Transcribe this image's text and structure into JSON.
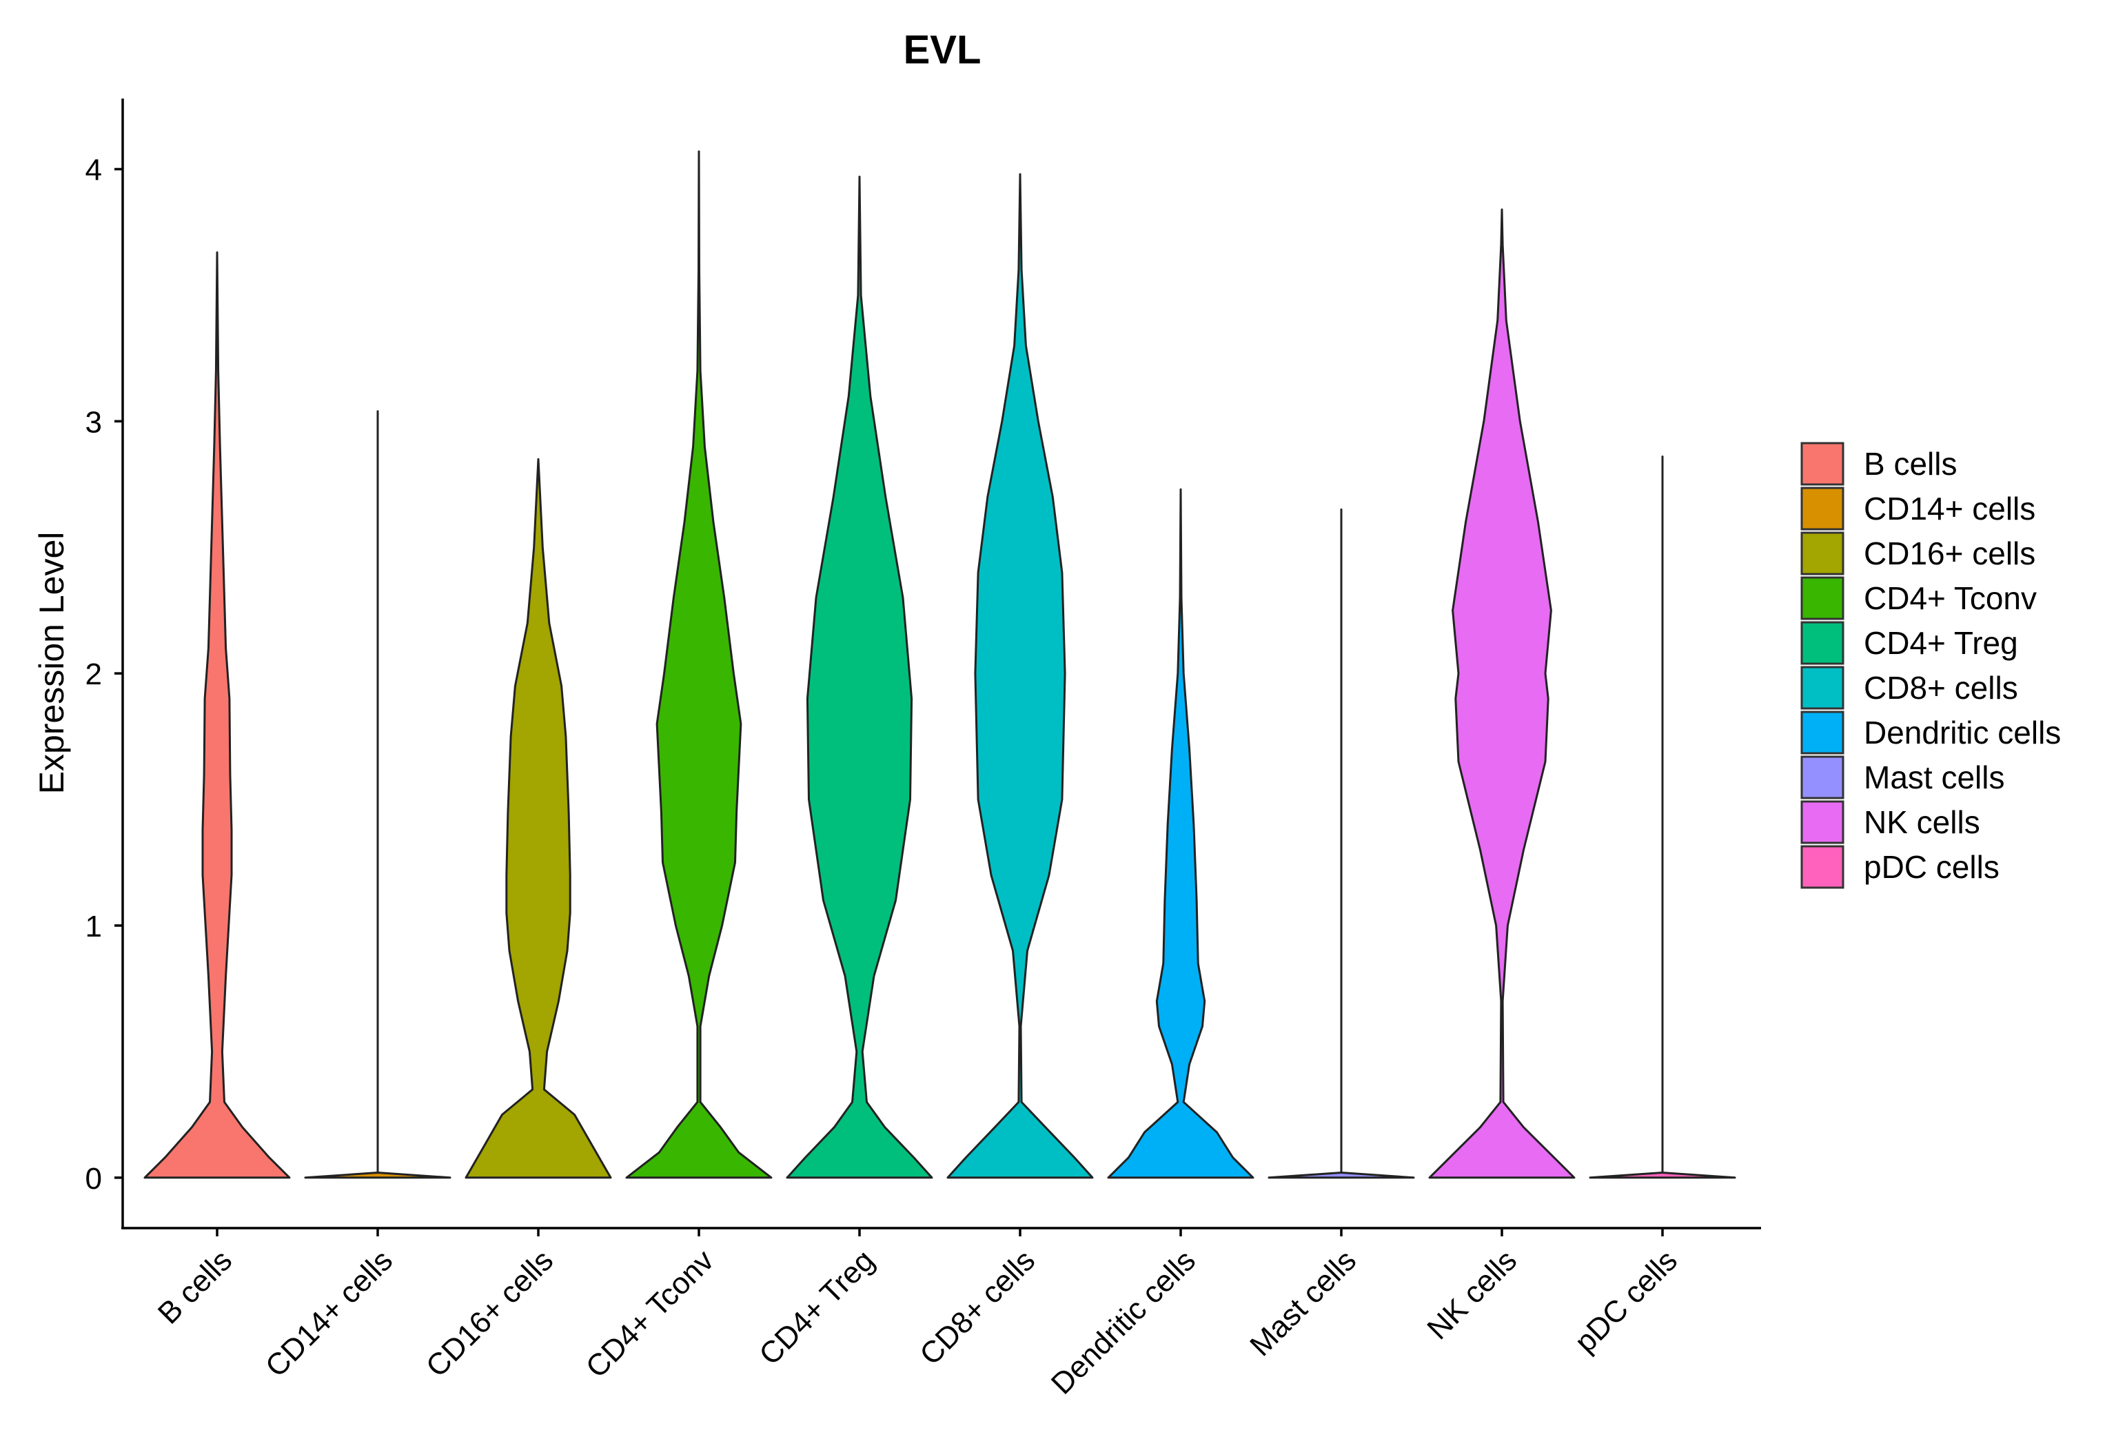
{
  "chart_data": {
    "type": "violin",
    "title": "EVL",
    "xlabel": "",
    "ylabel": "Expression Level",
    "ylim": [
      -0.2,
      4.28
    ],
    "yticks": [
      0,
      1,
      2,
      3,
      4
    ],
    "grid": false,
    "legend_position": "right",
    "categories": [
      "B cells",
      "CD14+ cells",
      "CD16+ cells",
      "CD4+ Tconv",
      "CD4+ Treg",
      "CD8+ cells",
      "Dendritic cells",
      "Mast cells",
      "NK cells",
      "pDC cells"
    ],
    "colors": [
      "#F8766D",
      "#D89000",
      "#A3A500",
      "#39B600",
      "#00BF7D",
      "#00BFC4",
      "#00B0F6",
      "#9590FF",
      "#E76BF3",
      "#FF62BC"
    ],
    "series": [
      {
        "name": "B cells",
        "max": 3.67,
        "density": [
          [
            0,
            1.0
          ],
          [
            0.08,
            0.72
          ],
          [
            0.2,
            0.35
          ],
          [
            0.3,
            0.1
          ],
          [
            0.5,
            0.07
          ],
          [
            0.8,
            0.12
          ],
          [
            1.2,
            0.2
          ],
          [
            1.38,
            0.2
          ],
          [
            1.6,
            0.18
          ],
          [
            1.9,
            0.17
          ],
          [
            2.1,
            0.12
          ],
          [
            2.5,
            0.08
          ],
          [
            2.9,
            0.04
          ],
          [
            3.2,
            0.015
          ],
          [
            3.67,
            0.0
          ]
        ]
      },
      {
        "name": "CD14+ cells",
        "max": 3.04,
        "density": [
          [
            0,
            1.0
          ],
          [
            0.02,
            0.0
          ],
          [
            3.04,
            0.0
          ]
        ]
      },
      {
        "name": "CD16+ cells",
        "max": 2.85,
        "density": [
          [
            0,
            1.0
          ],
          [
            0.1,
            0.8
          ],
          [
            0.25,
            0.5
          ],
          [
            0.35,
            0.08
          ],
          [
            0.5,
            0.12
          ],
          [
            0.7,
            0.28
          ],
          [
            0.9,
            0.4
          ],
          [
            1.05,
            0.44
          ],
          [
            1.2,
            0.44
          ],
          [
            1.45,
            0.42
          ],
          [
            1.75,
            0.38
          ],
          [
            1.95,
            0.32
          ],
          [
            2.2,
            0.15
          ],
          [
            2.5,
            0.06
          ],
          [
            2.85,
            0.0
          ]
        ]
      },
      {
        "name": "CD4+ Tconv",
        "max": 4.07,
        "density": [
          [
            0,
            1.0
          ],
          [
            0.1,
            0.55
          ],
          [
            0.2,
            0.3
          ],
          [
            0.3,
            0.02
          ],
          [
            0.6,
            0.02
          ],
          [
            0.8,
            0.14
          ],
          [
            1.0,
            0.32
          ],
          [
            1.25,
            0.5
          ],
          [
            1.45,
            0.52
          ],
          [
            1.8,
            0.58
          ],
          [
            2.0,
            0.48
          ],
          [
            2.3,
            0.35
          ],
          [
            2.6,
            0.2
          ],
          [
            2.9,
            0.08
          ],
          [
            3.2,
            0.02
          ],
          [
            3.6,
            0.005
          ],
          [
            4.07,
            0.0
          ]
        ]
      },
      {
        "name": "CD4+ Treg",
        "max": 3.97,
        "density": [
          [
            0,
            1.0
          ],
          [
            0.08,
            0.75
          ],
          [
            0.2,
            0.35
          ],
          [
            0.3,
            0.1
          ],
          [
            0.5,
            0.04
          ],
          [
            0.8,
            0.2
          ],
          [
            1.1,
            0.5
          ],
          [
            1.5,
            0.7
          ],
          [
            1.9,
            0.72
          ],
          [
            2.3,
            0.6
          ],
          [
            2.7,
            0.36
          ],
          [
            3.1,
            0.15
          ],
          [
            3.5,
            0.02
          ],
          [
            3.97,
            0.0
          ]
        ]
      },
      {
        "name": "CD8+ cells",
        "max": 3.98,
        "density": [
          [
            0,
            1.0
          ],
          [
            0.08,
            0.75
          ],
          [
            0.2,
            0.35
          ],
          [
            0.3,
            0.02
          ],
          [
            0.6,
            0.01
          ],
          [
            0.9,
            0.1
          ],
          [
            1.2,
            0.4
          ],
          [
            1.5,
            0.58
          ],
          [
            2.0,
            0.62
          ],
          [
            2.4,
            0.58
          ],
          [
            2.7,
            0.45
          ],
          [
            3.0,
            0.25
          ],
          [
            3.3,
            0.08
          ],
          [
            3.6,
            0.02
          ],
          [
            3.98,
            0.0
          ]
        ]
      },
      {
        "name": "Dendritic cells",
        "max": 2.73,
        "density": [
          [
            0,
            1.0
          ],
          [
            0.08,
            0.72
          ],
          [
            0.18,
            0.5
          ],
          [
            0.3,
            0.04
          ],
          [
            0.45,
            0.12
          ],
          [
            0.6,
            0.3
          ],
          [
            0.7,
            0.33
          ],
          [
            0.85,
            0.24
          ],
          [
            1.1,
            0.22
          ],
          [
            1.4,
            0.18
          ],
          [
            1.7,
            0.12
          ],
          [
            2.0,
            0.04
          ],
          [
            2.3,
            0.01
          ],
          [
            2.73,
            0.0
          ]
        ]
      },
      {
        "name": "Mast cells",
        "max": 2.65,
        "density": [
          [
            0,
            1.0
          ],
          [
            0.02,
            0.0
          ],
          [
            2.65,
            0.0
          ]
        ]
      },
      {
        "name": "NK cells",
        "max": 3.84,
        "density": [
          [
            0,
            1.0
          ],
          [
            0.08,
            0.72
          ],
          [
            0.2,
            0.3
          ],
          [
            0.3,
            0.02
          ],
          [
            0.7,
            0.01
          ],
          [
            1.0,
            0.08
          ],
          [
            1.3,
            0.3
          ],
          [
            1.65,
            0.6
          ],
          [
            1.9,
            0.64
          ],
          [
            2.0,
            0.6
          ],
          [
            2.25,
            0.68
          ],
          [
            2.6,
            0.5
          ],
          [
            3.0,
            0.25
          ],
          [
            3.4,
            0.06
          ],
          [
            3.7,
            0.01
          ],
          [
            3.84,
            0.0
          ]
        ]
      },
      {
        "name": "pDC cells",
        "max": 2.86,
        "density": [
          [
            0,
            1.0
          ],
          [
            0.02,
            0.0
          ],
          [
            2.86,
            0.0
          ]
        ]
      }
    ]
  }
}
